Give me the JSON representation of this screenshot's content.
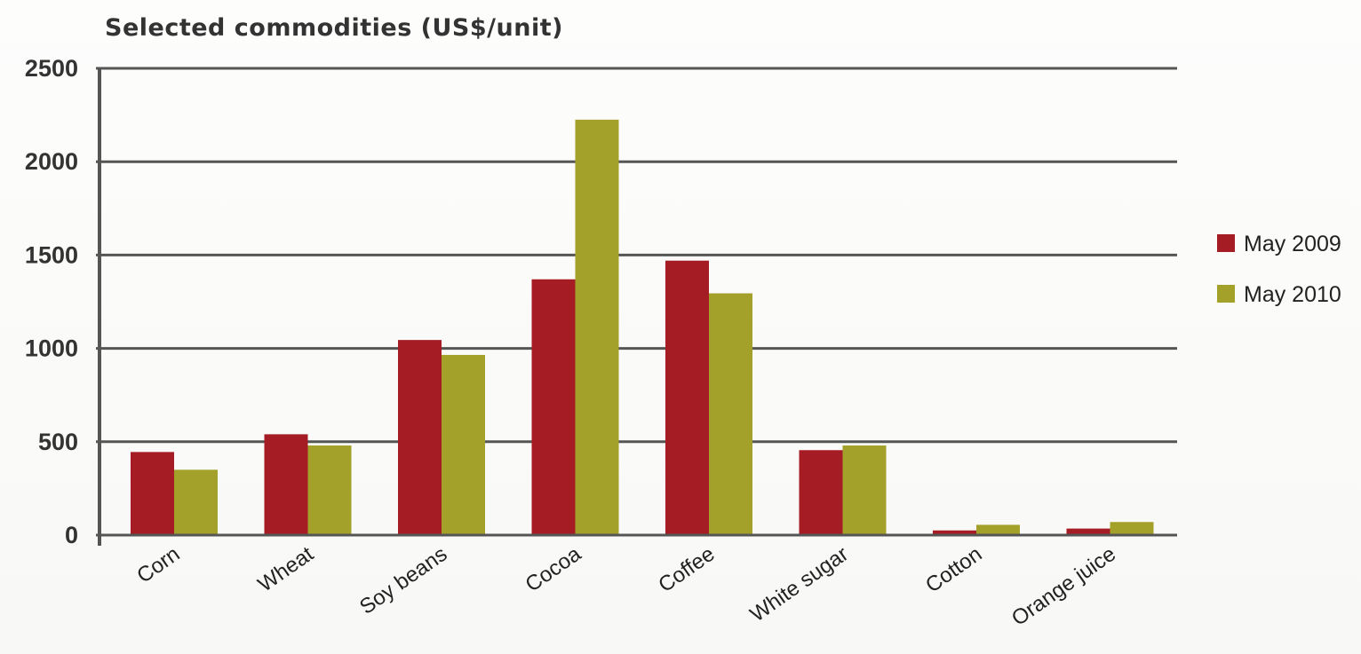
{
  "chart_data": {
    "type": "bar",
    "title": "Selected commodities (US$/unit)",
    "xlabel": "",
    "ylabel": "",
    "ylim": [
      0,
      2500
    ],
    "yticks": [
      0,
      500,
      1000,
      1500,
      2000,
      2500
    ],
    "grid": true,
    "legend_position": "right",
    "categories": [
      "Corn",
      "Wheat",
      "Soy beans",
      "Cocoa",
      "Coffee",
      "White sugar",
      "Cotton",
      "Orange juice"
    ],
    "series": [
      {
        "name": "May 2009",
        "color": "#a51c24",
        "values": [
          445,
          540,
          1045,
          1370,
          1470,
          455,
          25,
          35
        ]
      },
      {
        "name": "May 2010",
        "color": "#a3a12a",
        "values": [
          350,
          480,
          965,
          2225,
          1295,
          480,
          55,
          70
        ]
      }
    ]
  }
}
